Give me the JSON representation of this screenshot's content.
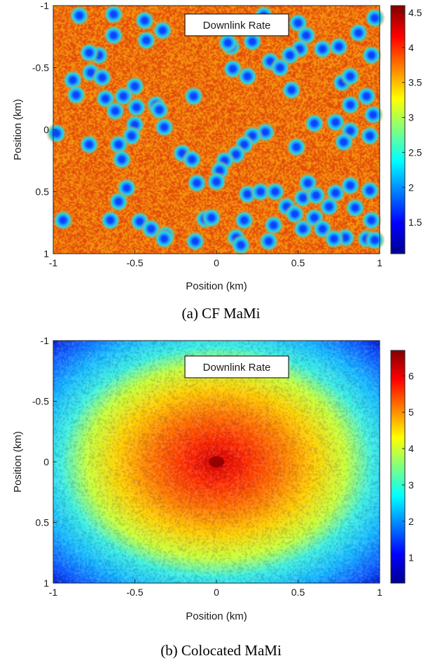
{
  "chart_data": [
    {
      "type": "heatmap",
      "caption": "(a) CF MaMi",
      "annotation": "Downlink Rate",
      "xlabel": "Position (km)",
      "ylabel": "Position (km)",
      "xlim": [
        -1,
        1
      ],
      "ylim": [
        -1,
        1
      ],
      "y_reversed": true,
      "xticks": [
        "-1",
        "-0.5",
        "0",
        "0.5",
        "1"
      ],
      "yticks": [
        "-1",
        "-0.5",
        "0",
        "0.5",
        "1"
      ],
      "colorbar": {
        "min": 1.05,
        "max": 4.6,
        "ticks": [
          "1.5",
          "2",
          "2.5",
          "3",
          "3.5",
          "4",
          "4.5"
        ],
        "tick_values": [
          1.5,
          2,
          2.5,
          3,
          3.5,
          4,
          4.5
        ],
        "colormap": "jet"
      },
      "background_level": 3.9,
      "hotspot_level": 1.7,
      "access_points": [
        [
          -0.84,
          -0.92
        ],
        [
          -0.63,
          -0.93
        ],
        [
          -0.44,
          -0.88
        ],
        [
          -0.33,
          -0.8
        ],
        [
          -0.63,
          -0.76
        ],
        [
          -0.43,
          -0.72
        ],
        [
          -0.72,
          -0.6
        ],
        [
          -0.78,
          -0.62
        ],
        [
          -0.77,
          -0.46
        ],
        [
          -0.88,
          -0.4
        ],
        [
          -0.7,
          -0.42
        ],
        [
          -0.86,
          -0.28
        ],
        [
          -0.68,
          -0.25
        ],
        [
          -0.5,
          -0.35
        ],
        [
          -0.37,
          -0.2
        ],
        [
          -0.57,
          -0.27
        ],
        [
          -0.62,
          -0.15
        ],
        [
          -0.49,
          -0.18
        ],
        [
          -0.32,
          -0.02
        ],
        [
          -0.5,
          -0.04
        ],
        [
          -0.52,
          0.05
        ],
        [
          -0.98,
          0.03
        ],
        [
          -0.6,
          0.12
        ],
        [
          -0.78,
          0.12
        ],
        [
          -0.58,
          0.24
        ],
        [
          -0.21,
          0.19
        ],
        [
          -0.15,
          0.24
        ],
        [
          -0.14,
          -0.27
        ],
        [
          -0.35,
          -0.16
        ],
        [
          -0.12,
          0.43
        ],
        [
          -0.55,
          0.47
        ],
        [
          -0.6,
          0.58
        ],
        [
          -0.94,
          0.73
        ],
        [
          -0.65,
          0.73
        ],
        [
          -0.47,
          0.74
        ],
        [
          -0.4,
          0.8
        ],
        [
          -0.31,
          0.85
        ],
        [
          -0.07,
          0.72
        ],
        [
          -0.32,
          0.88
        ],
        [
          -0.03,
          0.71
        ],
        [
          0.09,
          -0.67
        ],
        [
          0.07,
          -0.7
        ],
        [
          0.22,
          -0.71
        ],
        [
          0.1,
          -0.49
        ],
        [
          0.19,
          -0.43
        ],
        [
          0.33,
          -0.55
        ],
        [
          0.29,
          -0.92
        ],
        [
          0.38,
          -0.82
        ],
        [
          0.5,
          -0.86
        ],
        [
          0.55,
          -0.76
        ],
        [
          0.51,
          -0.65
        ],
        [
          0.45,
          -0.6
        ],
        [
          0.39,
          -0.5
        ],
        [
          0.46,
          -0.32
        ],
        [
          0.65,
          -0.65
        ],
        [
          0.75,
          -0.67
        ],
        [
          0.77,
          -0.38
        ],
        [
          0.82,
          -0.43
        ],
        [
          0.95,
          -0.6
        ],
        [
          0.87,
          -0.78
        ],
        [
          0.97,
          -0.9
        ],
        [
          0.92,
          -0.27
        ],
        [
          0.82,
          -0.2
        ],
        [
          0.96,
          -0.12
        ],
        [
          0.6,
          -0.05
        ],
        [
          0.73,
          -0.06
        ],
        [
          0.82,
          0.01
        ],
        [
          0.78,
          0.1
        ],
        [
          0.94,
          0.05
        ],
        [
          0.49,
          0.14
        ],
        [
          0.3,
          0.02
        ],
        [
          0.22,
          0.05
        ],
        [
          0.17,
          0.12
        ],
        [
          0.12,
          0.2
        ],
        [
          0.05,
          0.25
        ],
        [
          0.02,
          0.33
        ],
        [
          0.0,
          0.42
        ],
        [
          0.19,
          0.52
        ],
        [
          0.27,
          0.5
        ],
        [
          0.36,
          0.5
        ],
        [
          0.43,
          0.62
        ],
        [
          0.53,
          0.55
        ],
        [
          0.56,
          0.43
        ],
        [
          0.61,
          0.53
        ],
        [
          0.73,
          0.51
        ],
        [
          0.69,
          0.62
        ],
        [
          0.82,
          0.45
        ],
        [
          0.94,
          0.49
        ],
        [
          0.48,
          0.68
        ],
        [
          0.53,
          0.8
        ],
        [
          0.6,
          0.71
        ],
        [
          0.65,
          0.8
        ],
        [
          0.85,
          0.63
        ],
        [
          0.95,
          0.73
        ],
        [
          0.92,
          0.88
        ],
        [
          0.79,
          0.87
        ],
        [
          0.72,
          0.88
        ],
        [
          0.35,
          0.77
        ],
        [
          0.17,
          0.73
        ],
        [
          0.12,
          0.87
        ],
        [
          0.32,
          0.9
        ],
        [
          0.15,
          0.93
        ],
        [
          -0.13,
          0.9
        ],
        [
          0.97,
          0.89
        ]
      ]
    },
    {
      "type": "heatmap",
      "caption": "(b) Colocated MaMi",
      "annotation": "Downlink Rate",
      "xlabel": "Position (km)",
      "ylabel": "Position (km)",
      "xlim": [
        -1,
        1
      ],
      "ylim": [
        -1,
        1
      ],
      "y_reversed": true,
      "xticks": [
        "-1",
        "-0.5",
        "0",
        "0.5",
        "1"
      ],
      "yticks": [
        "-1",
        "-0.5",
        "0",
        "0.5",
        "1"
      ],
      "colorbar": {
        "min": 0.3,
        "max": 6.7,
        "ticks": [
          "1",
          "2",
          "3",
          "4",
          "5",
          "6"
        ],
        "tick_values": [
          1,
          2,
          3,
          4,
          5,
          6
        ],
        "colormap": "jet"
      },
      "center_level": 6.0,
      "edge_level": 0.6,
      "access_points": [
        [
          0.0,
          0.0
        ]
      ]
    }
  ]
}
